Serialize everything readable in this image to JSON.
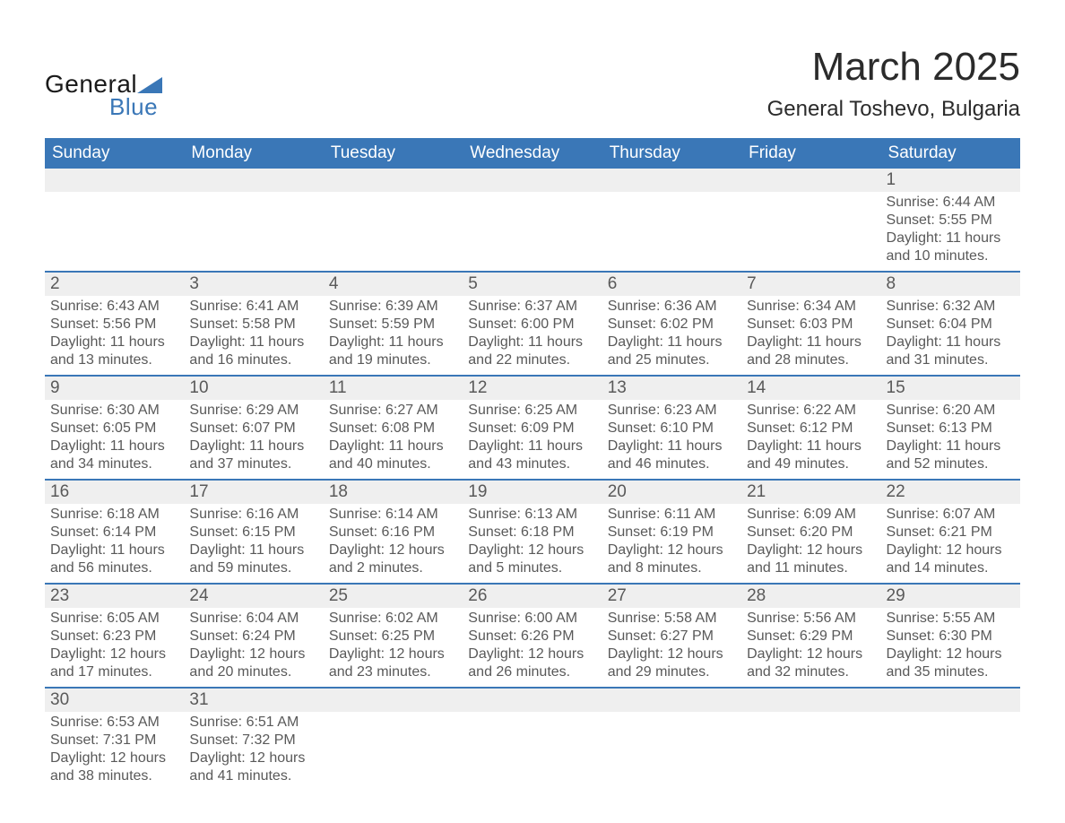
{
  "brand": {
    "word1": "General",
    "word2": "Blue",
    "accent_color": "#3a77b7"
  },
  "title": "March 2025",
  "location": "General Toshevo, Bulgaria",
  "header_bg": "#3a77b7",
  "header_text_color": "#ffffff",
  "daynum_bg": "#efefef",
  "row_border_color": "#3a77b7",
  "text_color": "#595959",
  "font_family": "Arial",
  "title_fontsize_pt": 33,
  "location_fontsize_pt": 18,
  "header_fontsize_pt": 14,
  "daynum_fontsize_pt": 14,
  "body_fontsize_pt": 12,
  "weekdays": [
    "Sunday",
    "Monday",
    "Tuesday",
    "Wednesday",
    "Thursday",
    "Friday",
    "Saturday"
  ],
  "weeks": [
    [
      null,
      null,
      null,
      null,
      null,
      null,
      {
        "n": 1,
        "sunrise": "6:44 AM",
        "sunset": "5:55 PM",
        "dl_h": 11,
        "dl_m": 10
      }
    ],
    [
      {
        "n": 2,
        "sunrise": "6:43 AM",
        "sunset": "5:56 PM",
        "dl_h": 11,
        "dl_m": 13
      },
      {
        "n": 3,
        "sunrise": "6:41 AM",
        "sunset": "5:58 PM",
        "dl_h": 11,
        "dl_m": 16
      },
      {
        "n": 4,
        "sunrise": "6:39 AM",
        "sunset": "5:59 PM",
        "dl_h": 11,
        "dl_m": 19
      },
      {
        "n": 5,
        "sunrise": "6:37 AM",
        "sunset": "6:00 PM",
        "dl_h": 11,
        "dl_m": 22
      },
      {
        "n": 6,
        "sunrise": "6:36 AM",
        "sunset": "6:02 PM",
        "dl_h": 11,
        "dl_m": 25
      },
      {
        "n": 7,
        "sunrise": "6:34 AM",
        "sunset": "6:03 PM",
        "dl_h": 11,
        "dl_m": 28
      },
      {
        "n": 8,
        "sunrise": "6:32 AM",
        "sunset": "6:04 PM",
        "dl_h": 11,
        "dl_m": 31
      }
    ],
    [
      {
        "n": 9,
        "sunrise": "6:30 AM",
        "sunset": "6:05 PM",
        "dl_h": 11,
        "dl_m": 34
      },
      {
        "n": 10,
        "sunrise": "6:29 AM",
        "sunset": "6:07 PM",
        "dl_h": 11,
        "dl_m": 37
      },
      {
        "n": 11,
        "sunrise": "6:27 AM",
        "sunset": "6:08 PM",
        "dl_h": 11,
        "dl_m": 40
      },
      {
        "n": 12,
        "sunrise": "6:25 AM",
        "sunset": "6:09 PM",
        "dl_h": 11,
        "dl_m": 43
      },
      {
        "n": 13,
        "sunrise": "6:23 AM",
        "sunset": "6:10 PM",
        "dl_h": 11,
        "dl_m": 46
      },
      {
        "n": 14,
        "sunrise": "6:22 AM",
        "sunset": "6:12 PM",
        "dl_h": 11,
        "dl_m": 49
      },
      {
        "n": 15,
        "sunrise": "6:20 AM",
        "sunset": "6:13 PM",
        "dl_h": 11,
        "dl_m": 52
      }
    ],
    [
      {
        "n": 16,
        "sunrise": "6:18 AM",
        "sunset": "6:14 PM",
        "dl_h": 11,
        "dl_m": 56
      },
      {
        "n": 17,
        "sunrise": "6:16 AM",
        "sunset": "6:15 PM",
        "dl_h": 11,
        "dl_m": 59
      },
      {
        "n": 18,
        "sunrise": "6:14 AM",
        "sunset": "6:16 PM",
        "dl_h": 12,
        "dl_m": 2
      },
      {
        "n": 19,
        "sunrise": "6:13 AM",
        "sunset": "6:18 PM",
        "dl_h": 12,
        "dl_m": 5
      },
      {
        "n": 20,
        "sunrise": "6:11 AM",
        "sunset": "6:19 PM",
        "dl_h": 12,
        "dl_m": 8
      },
      {
        "n": 21,
        "sunrise": "6:09 AM",
        "sunset": "6:20 PM",
        "dl_h": 12,
        "dl_m": 11
      },
      {
        "n": 22,
        "sunrise": "6:07 AM",
        "sunset": "6:21 PM",
        "dl_h": 12,
        "dl_m": 14
      }
    ],
    [
      {
        "n": 23,
        "sunrise": "6:05 AM",
        "sunset": "6:23 PM",
        "dl_h": 12,
        "dl_m": 17
      },
      {
        "n": 24,
        "sunrise": "6:04 AM",
        "sunset": "6:24 PM",
        "dl_h": 12,
        "dl_m": 20
      },
      {
        "n": 25,
        "sunrise": "6:02 AM",
        "sunset": "6:25 PM",
        "dl_h": 12,
        "dl_m": 23
      },
      {
        "n": 26,
        "sunrise": "6:00 AM",
        "sunset": "6:26 PM",
        "dl_h": 12,
        "dl_m": 26
      },
      {
        "n": 27,
        "sunrise": "5:58 AM",
        "sunset": "6:27 PM",
        "dl_h": 12,
        "dl_m": 29
      },
      {
        "n": 28,
        "sunrise": "5:56 AM",
        "sunset": "6:29 PM",
        "dl_h": 12,
        "dl_m": 32
      },
      {
        "n": 29,
        "sunrise": "5:55 AM",
        "sunset": "6:30 PM",
        "dl_h": 12,
        "dl_m": 35
      }
    ],
    [
      {
        "n": 30,
        "sunrise": "6:53 AM",
        "sunset": "7:31 PM",
        "dl_h": 12,
        "dl_m": 38
      },
      {
        "n": 31,
        "sunrise": "6:51 AM",
        "sunset": "7:32 PM",
        "dl_h": 12,
        "dl_m": 41
      },
      null,
      null,
      null,
      null,
      null
    ]
  ]
}
